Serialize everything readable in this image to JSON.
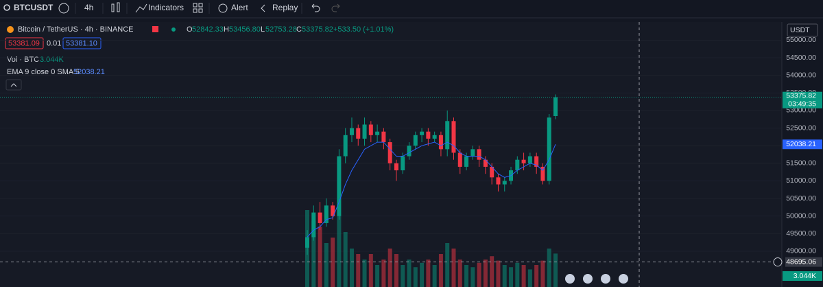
{
  "toolbar": {
    "symbol": "BTCUSDT",
    "interval": "4h",
    "indicators": "Indicators",
    "alert": "Alert",
    "replay": "Replay"
  },
  "legend": {
    "title": "Bitcoin / TetherUS · 4h · BINANCE",
    "o_key": "O",
    "o": "52842.33",
    "h_key": "H",
    "h": "53456.80",
    "l_key": "L",
    "l": "52753.28",
    "c_key": "C",
    "c": "53375.82",
    "change": "+533.50 (+1.01%)",
    "bid": "53381.09",
    "spread": "0.01",
    "ask": "53381.10",
    "vol_title": "Vol · BTC",
    "vol": "3.044K",
    "ema_title": "EMA 9 close 0 SMA 5",
    "ema": "52038.21"
  },
  "chart_data": {
    "type": "candlestick",
    "currency": "USDT",
    "ylim": [
      47984,
      55516
    ],
    "yticks": [
      {
        "value": 49000,
        "label": "49000.00"
      },
      {
        "value": 49500,
        "label": "49500.00"
      },
      {
        "value": 50000,
        "label": "50000.00"
      },
      {
        "value": 50500,
        "label": "50500.00"
      },
      {
        "value": 51000,
        "label": "51000.00"
      },
      {
        "value": 51500,
        "label": "51500.00"
      },
      {
        "value": 52000,
        "label": "52000.00"
      },
      {
        "value": 52500,
        "label": "52500.00"
      },
      {
        "value": 53000,
        "label": "53000.00"
      },
      {
        "value": 53500,
        "label": "53500.00"
      },
      {
        "value": 54000,
        "label": "54000.00"
      },
      {
        "value": 54500,
        "label": "54500.00"
      },
      {
        "value": 55000,
        "label": "55000.00"
      }
    ],
    "up_color": "#089981",
    "down_color": "#f23645",
    "opens": [
      49100,
      49400,
      50100,
      49800,
      50300,
      50000,
      51700,
      52300,
      52500,
      52200,
      52600,
      52300,
      52400,
      52100,
      51500,
      51300,
      51700,
      52000,
      52300,
      52400,
      52200,
      52300,
      51900,
      52700,
      51800,
      51400,
      51700,
      51900,
      51600,
      51400,
      51100,
      50900,
      51000,
      51300,
      51600,
      51500,
      51700,
      51400,
      51000,
      52842.33
    ],
    "highs": [
      49600,
      50300,
      50400,
      50500,
      50400,
      51900,
      52500,
      52800,
      52600,
      52800,
      52700,
      52600,
      52500,
      52200,
      51600,
      51800,
      52100,
      52400,
      52500,
      52500,
      52400,
      52400,
      53000,
      52800,
      51900,
      51800,
      52000,
      52000,
      51700,
      51500,
      51200,
      51100,
      51400,
      51700,
      51800,
      51800,
      51800,
      51500,
      52900,
      53456.8
    ],
    "lows": [
      48900,
      49300,
      49600,
      49700,
      49900,
      49900,
      51500,
      52100,
      52000,
      52000,
      52100,
      52100,
      51900,
      51300,
      51000,
      51200,
      51600,
      51900,
      52100,
      52000,
      52100,
      51700,
      51700,
      51600,
      51200,
      51300,
      51600,
      51400,
      51200,
      50900,
      50700,
      50700,
      50900,
      51200,
      51300,
      51400,
      51200,
      50900,
      50900,
      52753.28
    ],
    "closes": [
      49400,
      50100,
      49800,
      50300,
      50000,
      51700,
      52300,
      52500,
      52200,
      52600,
      52300,
      52400,
      52100,
      51500,
      51300,
      51700,
      52000,
      52300,
      52400,
      52200,
      52300,
      51900,
      52700,
      51800,
      51400,
      51700,
      51900,
      51600,
      51400,
      51100,
      50900,
      51000,
      51300,
      51600,
      51500,
      51700,
      51400,
      51000,
      52800,
      53375.82
    ],
    "ema": {
      "color": "#2962ff",
      "values": [
        49400,
        49600,
        49700,
        49900,
        49950,
        50400,
        50900,
        51300,
        51600,
        51900,
        52000,
        52100,
        52100,
        51900,
        51700,
        51700,
        51800,
        51900,
        52000,
        52050,
        52100,
        52000,
        52100,
        52000,
        51800,
        51700,
        51700,
        51700,
        51600,
        51400,
        51200,
        51100,
        51150,
        51300,
        51400,
        51500,
        51450,
        51300,
        51600,
        52038.21
      ]
    },
    "volume": {
      "vlim": [
        0,
        8000
      ],
      "values": [
        7000,
        6000,
        5500,
        4000,
        4500,
        6500,
        5000,
        3500,
        3000,
        2500,
        3000,
        2000,
        2500,
        3500,
        3000,
        2000,
        2500,
        1800,
        2200,
        2500,
        2000,
        3000,
        4000,
        3500,
        2500,
        2000,
        1800,
        2200,
        2500,
        2800,
        2400,
        2000,
        1800,
        2200,
        2000,
        1600,
        2000,
        2400,
        3500,
        3044
      ],
      "label": "3.044K"
    },
    "countdown": "03:49:35",
    "crosshair": 48695.06
  }
}
